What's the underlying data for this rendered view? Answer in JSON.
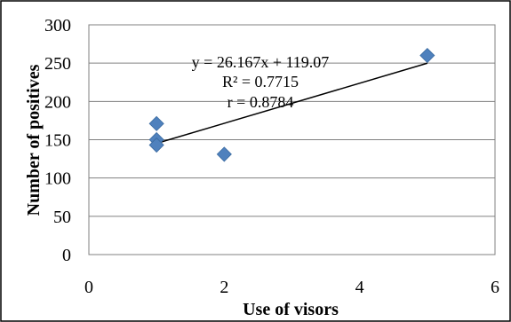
{
  "chart_data": {
    "type": "scatter",
    "title": "",
    "xlabel": "Use of visors",
    "ylabel": "Number of positives",
    "xlim": [
      0,
      6
    ],
    "ylim": [
      0,
      300
    ],
    "x_ticks": [
      "0",
      "2",
      "4",
      "6"
    ],
    "y_ticks": [
      "0",
      "50",
      "100",
      "150",
      "200",
      "250",
      "300"
    ],
    "grid": "horizontal",
    "legend": "none",
    "series": [
      {
        "points": [
          {
            "x": 1,
            "y": 171
          },
          {
            "x": 1,
            "y": 150
          },
          {
            "x": 1,
            "y": 143
          },
          {
            "x": 2,
            "y": 131
          },
          {
            "x": 5,
            "y": 260
          }
        ],
        "color": "#4f81bd"
      }
    ],
    "trendline": {
      "type": "linear",
      "slope": 26.167,
      "intercept": 119.07,
      "x_from": 1,
      "x_to": 5,
      "color": "#000000"
    },
    "annotations": {
      "equation": "y = 26.167x + 119.07",
      "r_squared": "R² = 0.7715",
      "r": "r = 0.8784"
    }
  }
}
